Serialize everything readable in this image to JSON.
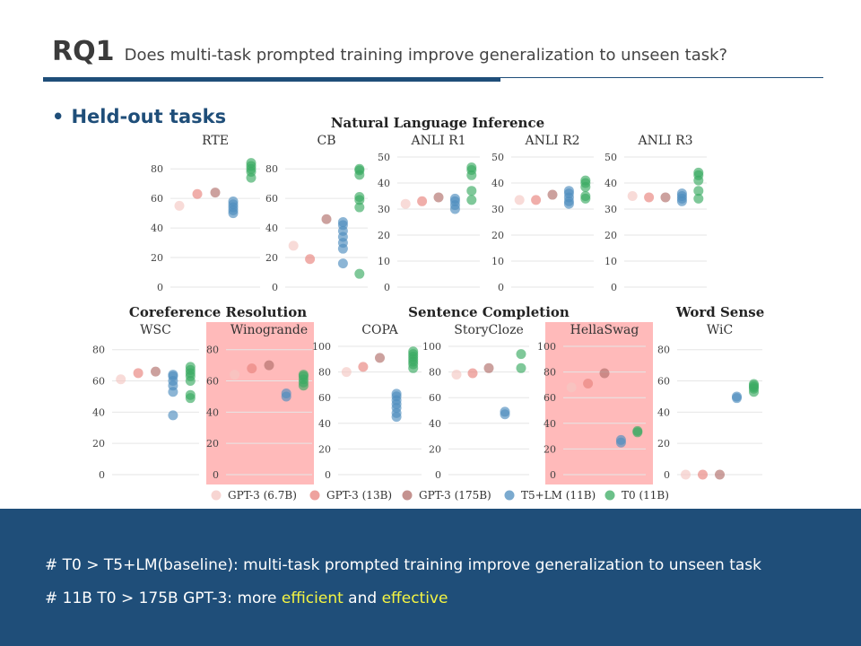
{
  "slide": {
    "rq_label": "RQ1",
    "question": "Does multi-task prompted training improve generalization to unseen task?",
    "bullet_marker": "•",
    "bullet": "Held-out tasks"
  },
  "footer": {
    "line1": "# T0 > T5+LM(baseline):  multi-task prompted training improve generalization to unseen task",
    "line2_prefix": "# 11B T0 > 175B GPT-3: more ",
    "line2_efficient": "efficient",
    "line2_and": " and ",
    "line2_effective": "effective"
  },
  "colors": {
    "accent": "#1f4e79",
    "highlight": "#f5f542",
    "panel_highlight": "#ffb3b3",
    "gpt3_6_7b": "#f4c7c3",
    "gpt3_13b": "#e8837d",
    "gpt3_175b": "#b06e6a",
    "t5lm": "#4f8ebf",
    "t0": "#3aab62"
  },
  "chart_data": {
    "type": "scatter",
    "group_titles": [
      "Natural Language Inference",
      "Coreference Resolution",
      "Sentence Completion",
      "Word Sense"
    ],
    "legend": [
      {
        "key": "gpt3_6_7b",
        "label": "GPT-3 (6.7B)"
      },
      {
        "key": "gpt3_13b",
        "label": "GPT-3 (13B)"
      },
      {
        "key": "gpt3_175b",
        "label": "GPT-3 (175B)"
      },
      {
        "key": "t5lm",
        "label": "T5+LM (11B)"
      },
      {
        "key": "t0",
        "label": "T0 (11B)"
      }
    ],
    "panels": [
      {
        "name": "RTE",
        "ylim": [
          0,
          85
        ],
        "yticks": [
          0,
          20,
          40,
          60,
          80
        ],
        "highlight": false,
        "gpt3_6_7b": [
          55
        ],
        "gpt3_13b": [
          63
        ],
        "gpt3_175b": [
          64
        ],
        "t5lm": [
          50,
          52,
          54,
          56,
          58
        ],
        "t0": [
          74,
          78,
          80,
          82,
          84
        ]
      },
      {
        "name": "CB",
        "ylim": [
          0,
          85
        ],
        "yticks": [
          0,
          20,
          40,
          60,
          80
        ],
        "highlight": false,
        "gpt3_6_7b": [
          28
        ],
        "gpt3_13b": [
          19
        ],
        "gpt3_175b": [
          46
        ],
        "t5lm": [
          16,
          26,
          30,
          34,
          38,
          42,
          44
        ],
        "t0": [
          9,
          54,
          59,
          61,
          76,
          79,
          80
        ]
      },
      {
        "name": "ANLI R1",
        "ylim": [
          0,
          50
        ],
        "yticks": [
          0,
          10,
          20,
          30,
          40,
          50
        ],
        "highlight": false,
        "gpt3_6_7b": [
          32
        ],
        "gpt3_13b": [
          33
        ],
        "gpt3_175b": [
          34.5
        ],
        "t5lm": [
          30,
          31.5,
          33,
          34
        ],
        "t0": [
          33.5,
          37,
          43,
          45,
          46
        ]
      },
      {
        "name": "ANLI R2",
        "ylim": [
          0,
          50
        ],
        "yticks": [
          0,
          10,
          20,
          30,
          40,
          50
        ],
        "highlight": false,
        "gpt3_6_7b": [
          33.5
        ],
        "gpt3_13b": [
          33.5
        ],
        "gpt3_175b": [
          35.5
        ],
        "t5lm": [
          32,
          33,
          34.5,
          36,
          37
        ],
        "t0": [
          34,
          35,
          38.5,
          40,
          41
        ]
      },
      {
        "name": "ANLI R3",
        "ylim": [
          0,
          50
        ],
        "yticks": [
          0,
          10,
          20,
          30,
          40,
          50
        ],
        "highlight": false,
        "gpt3_6_7b": [
          35
        ],
        "gpt3_13b": [
          34.5
        ],
        "gpt3_175b": [
          34.5
        ],
        "t5lm": [
          33,
          34,
          35,
          36
        ],
        "t0": [
          34,
          37,
          41,
          43,
          44
        ]
      },
      {
        "name": "WSC",
        "ylim": [
          0,
          85
        ],
        "yticks": [
          0,
          20,
          40,
          60,
          80
        ],
        "highlight": false,
        "gpt3_6_7b": [
          61
        ],
        "gpt3_13b": [
          65
        ],
        "gpt3_175b": [
          66
        ],
        "t5lm": [
          38,
          53,
          57,
          60,
          63,
          64
        ],
        "t0": [
          49,
          51,
          60,
          63,
          65,
          67,
          69
        ]
      },
      {
        "name": "Winogrande",
        "ylim": [
          0,
          85
        ],
        "yticks": [
          0,
          20,
          40,
          60,
          80
        ],
        "highlight": true,
        "gpt3_6_7b": [
          64
        ],
        "gpt3_13b": [
          68
        ],
        "gpt3_175b": [
          70
        ],
        "t5lm": [
          50,
          52
        ],
        "t0": [
          57,
          59,
          61,
          63,
          64
        ]
      },
      {
        "name": "COPA",
        "ylim": [
          0,
          100
        ],
        "yticks": [
          0,
          20,
          40,
          60,
          80,
          100
        ],
        "highlight": false,
        "gpt3_6_7b": [
          80
        ],
        "gpt3_13b": [
          84
        ],
        "gpt3_175b": [
          91
        ],
        "t5lm": [
          45,
          48,
          52,
          55,
          58,
          61,
          63
        ],
        "t0": [
          83,
          86,
          88,
          90,
          92,
          94,
          96
        ]
      },
      {
        "name": "StoryCloze",
        "ylim": [
          0,
          100
        ],
        "yticks": [
          0,
          20,
          40,
          60,
          80,
          100
        ],
        "highlight": false,
        "gpt3_6_7b": [
          78
        ],
        "gpt3_13b": [
          79
        ],
        "gpt3_175b": [
          83
        ],
        "t5lm": [
          47,
          49
        ],
        "t0": [
          83,
          94
        ]
      },
      {
        "name": "HellaSwag",
        "ylim": [
          0,
          100
        ],
        "yticks": [
          0,
          20,
          40,
          60,
          80,
          100
        ],
        "highlight": true,
        "gpt3_6_7b": [
          68
        ],
        "gpt3_13b": [
          71
        ],
        "gpt3_175b": [
          79
        ],
        "t5lm": [
          25,
          27
        ],
        "t0": [
          33,
          34
        ]
      },
      {
        "name": "WiC",
        "ylim": [
          0,
          85
        ],
        "yticks": [
          0,
          20,
          40,
          60,
          80
        ],
        "highlight": false,
        "gpt3_6_7b": [
          0
        ],
        "gpt3_13b": [
          0
        ],
        "gpt3_175b": [
          0
        ],
        "t5lm": [
          49,
          50
        ],
        "t0": [
          53,
          55,
          56,
          57,
          58
        ]
      }
    ]
  }
}
